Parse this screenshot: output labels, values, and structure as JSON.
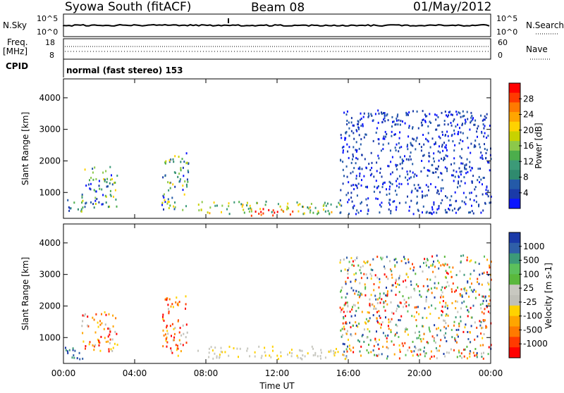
{
  "header": {
    "title": "Syowa South (fitACF)",
    "beam": "Beam 08",
    "date": "01/May/2012"
  },
  "top_panels": {
    "nsky_label": "N.Sky",
    "nsky_ticks": [
      "10^5",
      "10^0"
    ],
    "nsearch_label": "N.Search",
    "freq_label": "Freq.",
    "freq_unit": "[MHz]",
    "freq_ticks": [
      "18",
      "8"
    ],
    "nave_label": "Nave",
    "nave_ticks": [
      "60",
      "0"
    ],
    "cpid_label": "CPID",
    "cpid_text": "normal (fast stereo) 153"
  },
  "colorbars": {
    "power": {
      "label": "Power [dB]",
      "ticks": [
        "28",
        "24",
        "20",
        "16",
        "12",
        "8",
        "4"
      ],
      "colors": [
        "#ff0000",
        "#ff3a00",
        "#ff7a00",
        "#ffa500",
        "#ffd200",
        "#c8d200",
        "#8cc84a",
        "#4cae4c",
        "#3c9a78",
        "#2f8a6e",
        "#245aa8",
        "#1a3aa8",
        "#0a14ff"
      ]
    },
    "velocity": {
      "label": "Velocity [m s-1]",
      "ticks": [
        "1000",
        "500",
        "100",
        "25",
        "-25",
        "-100",
        "-500",
        "-1000"
      ],
      "colors": [
        "#1a3aa8",
        "#2f5fa8",
        "#3c9a78",
        "#5cc05c",
        "#5ab83c",
        "#c8c8c0",
        "#c0c0b8",
        "#ffd200",
        "#ffa500",
        "#ff7a00",
        "#ff3a00",
        "#ff0000"
      ]
    }
  },
  "chart_data": [
    {
      "type": "heatmap",
      "panel": "power",
      "ylabel": "Slant Range [km]",
      "xlabel": "",
      "yticks": [
        1000,
        2000,
        3000,
        4000
      ],
      "ylim": [
        180,
        4600
      ],
      "xlim_hours": [
        0,
        24
      ],
      "color_scale": "Power [dB]",
      "clusters": [
        {
          "t0": 0.0,
          "t1": 1.2,
          "r0": 300,
          "r1": 800,
          "level": "8-16"
        },
        {
          "t0": 1.0,
          "t1": 3.0,
          "r0": 500,
          "r1": 1800,
          "level": "8-20"
        },
        {
          "t0": 5.5,
          "t1": 7.0,
          "r0": 400,
          "r1": 2300,
          "level": "8-24"
        },
        {
          "t0": 7.5,
          "t1": 15.5,
          "r0": 300,
          "r1": 700,
          "level": "8-20"
        },
        {
          "t0": 10.5,
          "t1": 13.0,
          "r0": 250,
          "r1": 500,
          "level": "24-28"
        },
        {
          "t0": 15.5,
          "t1": 24.0,
          "r0": 300,
          "r1": 3600,
          "level": "4-8"
        }
      ]
    },
    {
      "type": "heatmap",
      "panel": "velocity",
      "ylabel": "Slant Range [km]",
      "xlabel": "Time UT",
      "yticks": [
        1000,
        2000,
        3000,
        4000
      ],
      "xticks": [
        "00:00",
        "04:00",
        "08:00",
        "12:00",
        "16:00",
        "20:00",
        "00:00"
      ],
      "ylim": [
        180,
        4600
      ],
      "xlim_hours": [
        0,
        24
      ],
      "color_scale": "Velocity [m s-1]",
      "clusters": [
        {
          "t0": 0.0,
          "t1": 1.2,
          "r0": 300,
          "r1": 800,
          "level": "500-1000"
        },
        {
          "t0": 1.0,
          "t1": 3.0,
          "r0": 500,
          "r1": 1800,
          "level": "-100 to 25"
        },
        {
          "t0": 5.5,
          "t1": 7.0,
          "r0": 400,
          "r1": 2300,
          "level": "-500 to 100"
        },
        {
          "t0": 7.5,
          "t1": 15.5,
          "r0": 300,
          "r1": 700,
          "level": "-25 to 25"
        },
        {
          "t0": 15.5,
          "t1": 24.0,
          "r0": 300,
          "r1": 3600,
          "level": "-500 to 500"
        }
      ]
    }
  ]
}
